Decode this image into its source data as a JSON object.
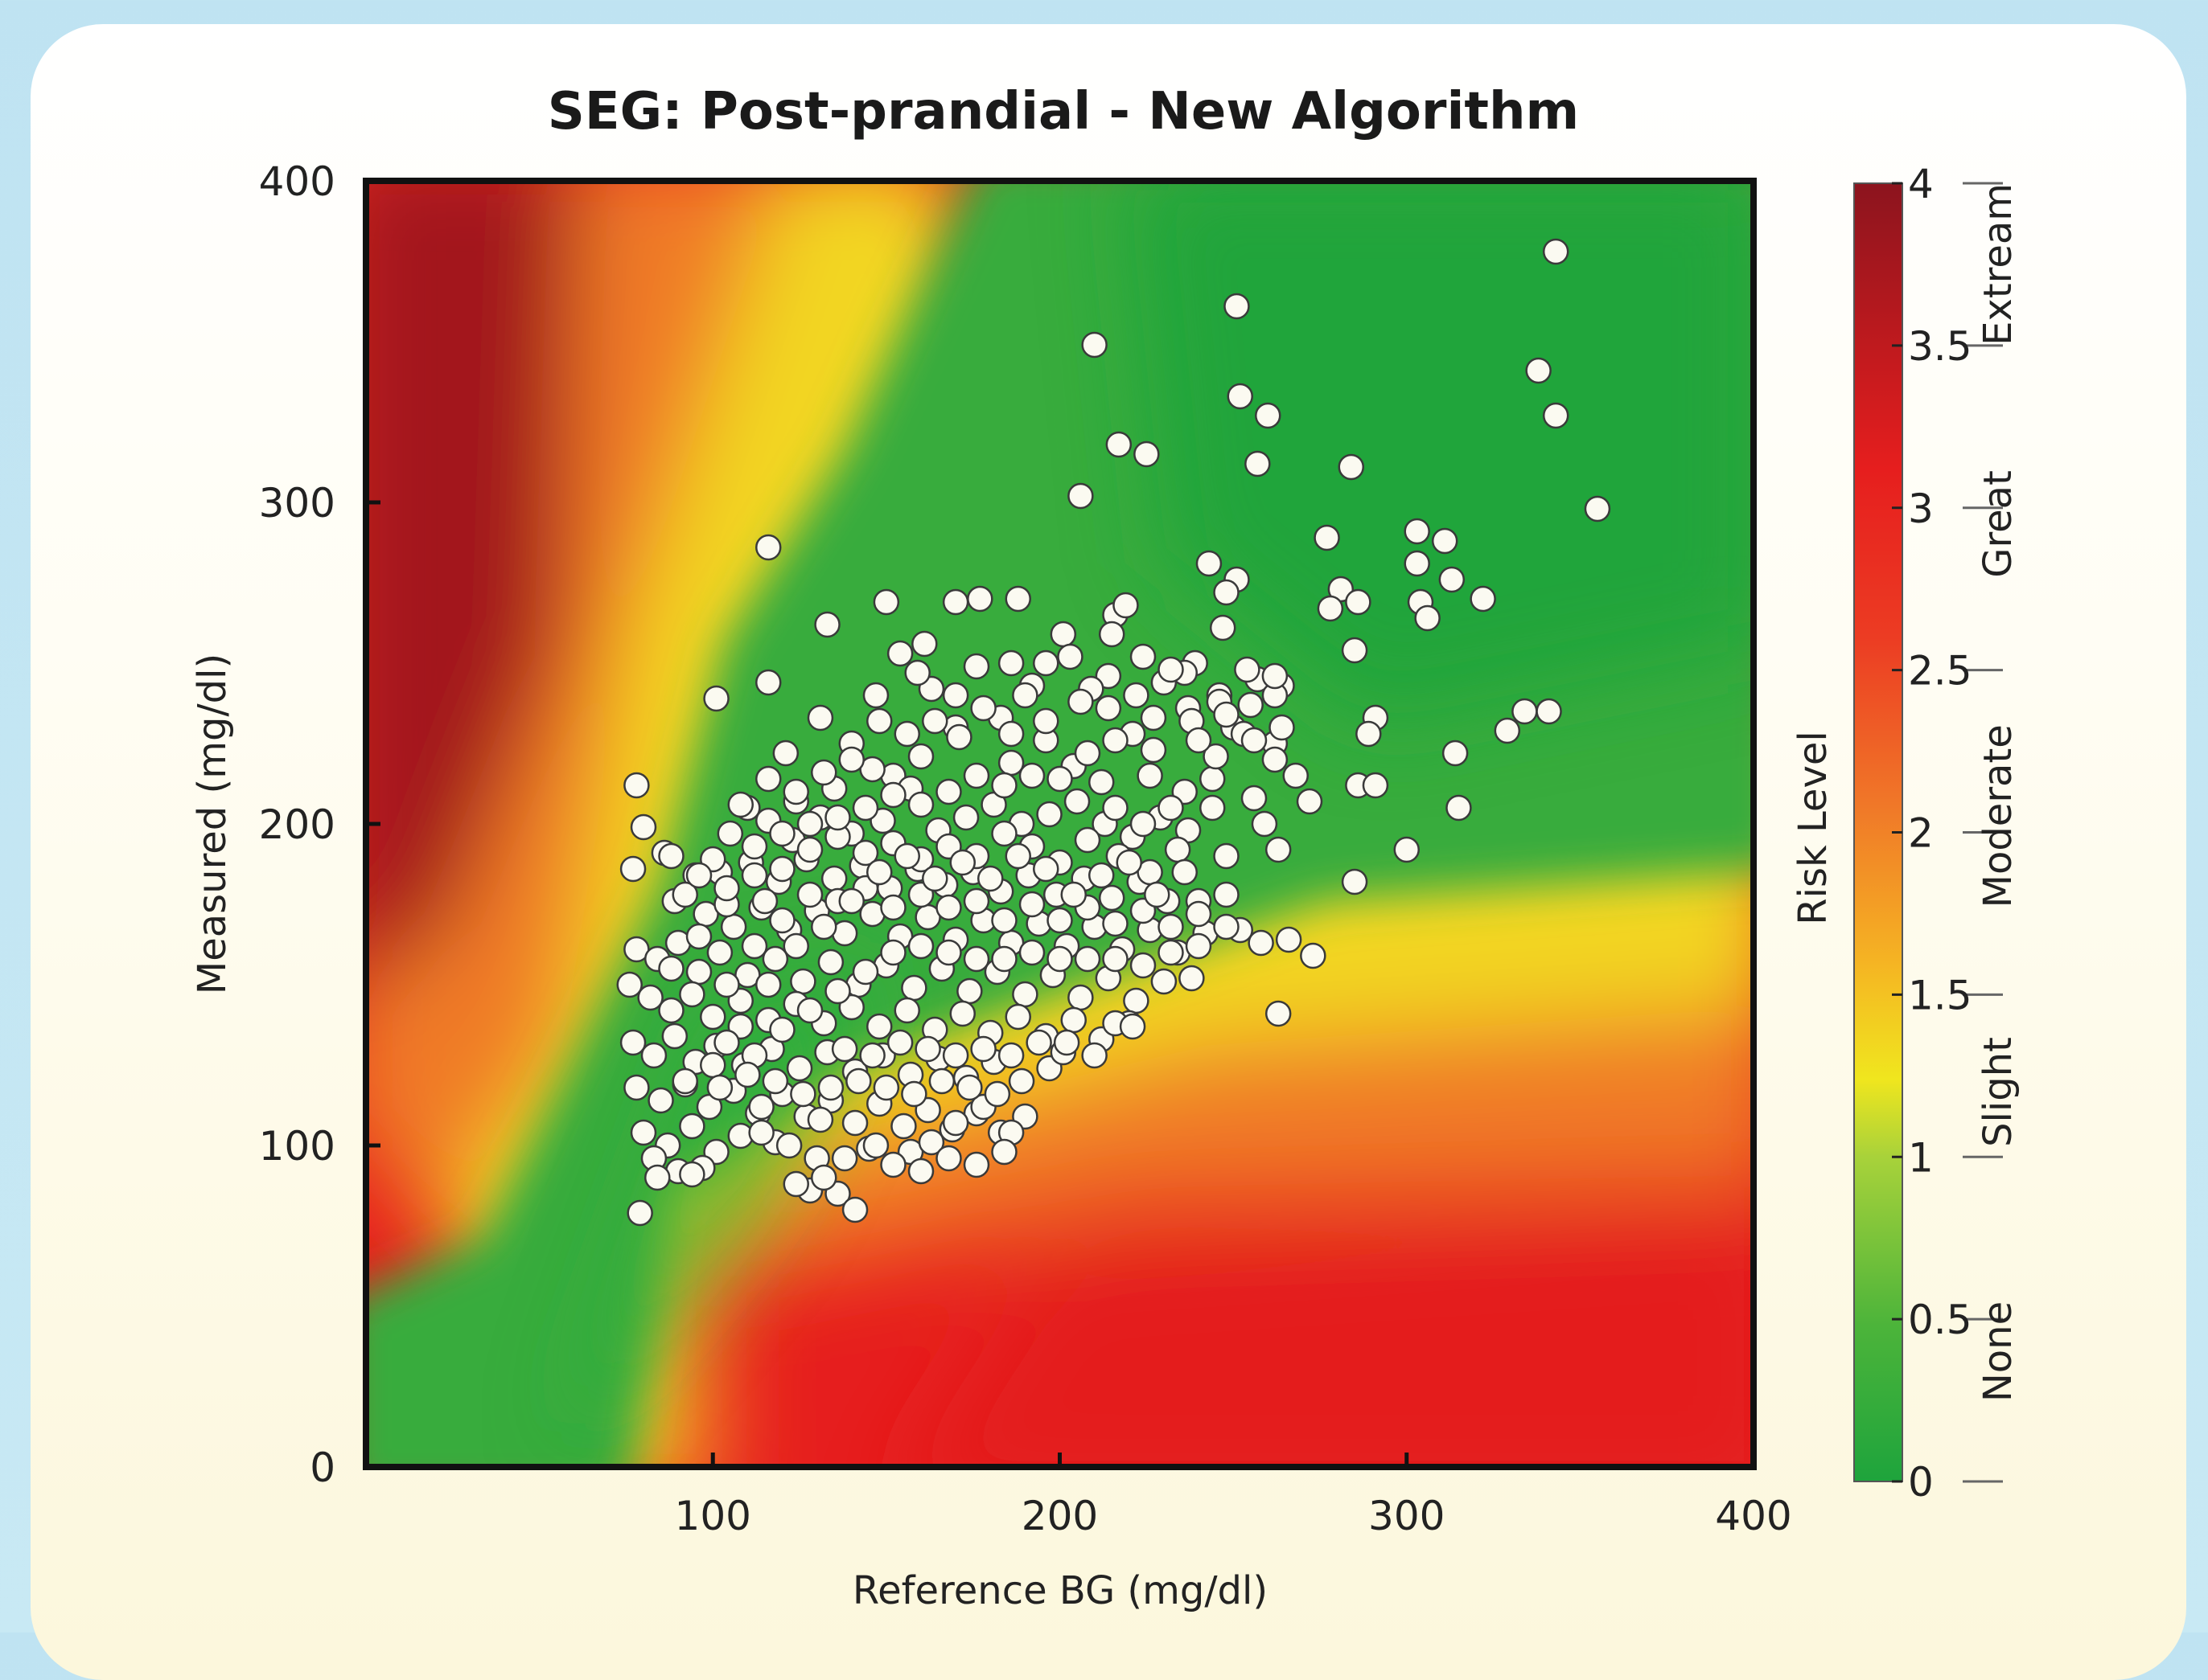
{
  "chart_data": {
    "type": "scatter",
    "title": "SEG: Post-prandial - New Algorithm",
    "xlabel": "Reference BG (mg/dl)",
    "ylabel": "Measured (mg/dl)",
    "xlim": [
      0,
      400
    ],
    "ylim": [
      0,
      400
    ],
    "x_ticks": [
      "100",
      "200",
      "300",
      "400"
    ],
    "y_ticks": [
      "0",
      "100",
      "200",
      "300",
      "400"
    ],
    "background": "risk-level heatmap (green = none, red = extreme)",
    "colorbar": {
      "label": "Risk Level",
      "range": [
        0,
        4
      ],
      "ticks": [
        "0",
        "0.5",
        "1",
        "1.5",
        "2",
        "2.5",
        "3",
        "3.5",
        "4"
      ],
      "categories": [
        "None",
        "Slight",
        "Moderate",
        "Great",
        "Extream"
      ],
      "colors": [
        "#1ea43c",
        "#8cc83c",
        "#f0e61e",
        "#f07828",
        "#e61e1e",
        "#8c141e"
      ]
    },
    "points": [
      [
        343,
        378
      ],
      [
        251,
        361
      ],
      [
        210,
        349
      ],
      [
        338,
        341
      ],
      [
        343,
        327
      ],
      [
        252,
        333
      ],
      [
        260,
        327
      ],
      [
        217,
        318
      ],
      [
        225,
        315
      ],
      [
        257,
        312
      ],
      [
        284,
        311
      ],
      [
        206,
        302
      ],
      [
        355,
        298
      ],
      [
        303,
        291
      ],
      [
        311,
        288
      ],
      [
        277,
        289
      ],
      [
        303,
        281
      ],
      [
        243,
        281
      ],
      [
        116,
        286
      ],
      [
        251,
        276
      ],
      [
        281,
        273
      ],
      [
        313,
        276
      ],
      [
        248,
        272
      ],
      [
        286,
        269
      ],
      [
        304,
        269
      ],
      [
        322,
        270
      ],
      [
        278,
        267
      ],
      [
        150,
        269
      ],
      [
        170,
        269
      ],
      [
        177,
        270
      ],
      [
        188,
        270
      ],
      [
        216,
        265
      ],
      [
        219,
        268
      ],
      [
        247,
        261
      ],
      [
        306,
        264
      ],
      [
        133,
        262
      ],
      [
        201,
        259
      ],
      [
        161,
        256
      ],
      [
        154,
        253
      ],
      [
        215,
        259
      ],
      [
        239,
        250
      ],
      [
        257,
        245
      ],
      [
        264,
        243
      ],
      [
        285,
        254
      ],
      [
        246,
        240
      ],
      [
        131,
        233
      ],
      [
        163,
        242
      ],
      [
        176,
        249
      ],
      [
        203,
        252
      ],
      [
        236,
        247
      ],
      [
        262,
        240
      ],
      [
        101,
        239
      ],
      [
        116,
        244
      ],
      [
        147,
        240
      ],
      [
        159,
        247
      ],
      [
        186,
        250
      ],
      [
        214,
        246
      ],
      [
        192,
        243
      ],
      [
        209,
        242
      ],
      [
        227,
        233
      ],
      [
        237,
        236
      ],
      [
        250,
        230
      ],
      [
        262,
        225
      ],
      [
        291,
        233
      ],
      [
        289,
        228
      ],
      [
        334,
        235
      ],
      [
        341,
        235
      ],
      [
        329,
        229
      ],
      [
        314,
        222
      ],
      [
        121,
        222
      ],
      [
        140,
        225
      ],
      [
        170,
        230
      ],
      [
        152,
        215
      ],
      [
        186,
        219
      ],
      [
        221,
        228
      ],
      [
        227,
        223
      ],
      [
        244,
        214
      ],
      [
        256,
        208
      ],
      [
        259,
        200
      ],
      [
        272,
        207
      ],
      [
        286,
        212
      ],
      [
        291,
        212
      ],
      [
        315,
        205
      ],
      [
        300,
        192
      ],
      [
        263,
        192
      ],
      [
        285,
        182
      ],
      [
        248,
        190
      ],
      [
        240,
        176
      ],
      [
        78,
        212
      ],
      [
        80,
        199
      ],
      [
        77,
        186
      ],
      [
        95,
        184
      ],
      [
        86,
        191
      ],
      [
        89,
        176
      ],
      [
        105,
        197
      ],
      [
        110,
        205
      ],
      [
        116,
        201
      ],
      [
        124,
        207
      ],
      [
        131,
        202
      ],
      [
        140,
        197
      ],
      [
        149,
        201
      ],
      [
        157,
        211
      ],
      [
        165,
        198
      ],
      [
        173,
        202
      ],
      [
        181,
        206
      ],
      [
        189,
        200
      ],
      [
        197,
        203
      ],
      [
        205,
        207
      ],
      [
        213,
        200
      ],
      [
        221,
        196
      ],
      [
        229,
        202
      ],
      [
        237,
        198
      ],
      [
        102,
        185
      ],
      [
        111,
        188
      ],
      [
        119,
        182
      ],
      [
        127,
        189
      ],
      [
        135,
        183
      ],
      [
        143,
        187
      ],
      [
        151,
        180
      ],
      [
        159,
        186
      ],
      [
        167,
        181
      ],
      [
        175,
        185
      ],
      [
        183,
        179
      ],
      [
        191,
        184
      ],
      [
        199,
        178
      ],
      [
        207,
        183
      ],
      [
        215,
        177
      ],
      [
        223,
        182
      ],
      [
        231,
        176
      ],
      [
        98,
        172
      ],
      [
        106,
        168
      ],
      [
        114,
        174
      ],
      [
        122,
        167
      ],
      [
        130,
        173
      ],
      [
        138,
        166
      ],
      [
        146,
        172
      ],
      [
        154,
        165
      ],
      [
        162,
        171
      ],
      [
        170,
        164
      ],
      [
        178,
        170
      ],
      [
        186,
        163
      ],
      [
        194,
        169
      ],
      [
        202,
        162
      ],
      [
        210,
        168
      ],
      [
        218,
        161
      ],
      [
        226,
        167
      ],
      [
        234,
        160
      ],
      [
        242,
        166
      ],
      [
        252,
        167
      ],
      [
        258,
        163
      ],
      [
        266,
        164
      ],
      [
        273,
        159
      ],
      [
        238,
        152
      ],
      [
        78,
        161
      ],
      [
        84,
        158
      ],
      [
        90,
        163
      ],
      [
        96,
        154
      ],
      [
        102,
        160
      ],
      [
        110,
        153
      ],
      [
        118,
        158
      ],
      [
        126,
        151
      ],
      [
        134,
        157
      ],
      [
        142,
        150
      ],
      [
        150,
        156
      ],
      [
        158,
        149
      ],
      [
        166,
        155
      ],
      [
        174,
        148
      ],
      [
        182,
        154
      ],
      [
        190,
        147
      ],
      [
        198,
        153
      ],
      [
        206,
        146
      ],
      [
        214,
        152
      ],
      [
        222,
        145
      ],
      [
        230,
        151
      ],
      [
        76,
        150
      ],
      [
        82,
        146
      ],
      [
        88,
        142
      ],
      [
        94,
        147
      ],
      [
        100,
        140
      ],
      [
        108,
        145
      ],
      [
        116,
        139
      ],
      [
        124,
        144
      ],
      [
        132,
        138
      ],
      [
        140,
        143
      ],
      [
        148,
        137
      ],
      [
        156,
        142
      ],
      [
        164,
        136
      ],
      [
        172,
        141
      ],
      [
        180,
        135
      ],
      [
        188,
        140
      ],
      [
        196,
        134
      ],
      [
        204,
        139
      ],
      [
        212,
        133
      ],
      [
        220,
        138
      ],
      [
        263,
        141
      ],
      [
        77,
        132
      ],
      [
        83,
        128
      ],
      [
        89,
        134
      ],
      [
        95,
        126
      ],
      [
        101,
        131
      ],
      [
        109,
        125
      ],
      [
        117,
        130
      ],
      [
        125,
        124
      ],
      [
        133,
        129
      ],
      [
        141,
        123
      ],
      [
        149,
        128
      ],
      [
        157,
        122
      ],
      [
        165,
        127
      ],
      [
        173,
        121
      ],
      [
        181,
        126
      ],
      [
        189,
        120
      ],
      [
        197,
        124
      ],
      [
        201,
        129
      ],
      [
        216,
        138
      ],
      [
        221,
        137
      ],
      [
        78,
        118
      ],
      [
        85,
        114
      ],
      [
        92,
        119
      ],
      [
        99,
        112
      ],
      [
        106,
        117
      ],
      [
        113,
        110
      ],
      [
        120,
        116
      ],
      [
        127,
        109
      ],
      [
        134,
        114
      ],
      [
        141,
        107
      ],
      [
        148,
        113
      ],
      [
        155,
        106
      ],
      [
        162,
        111
      ],
      [
        169,
        105
      ],
      [
        176,
        110
      ],
      [
        183,
        104
      ],
      [
        190,
        109
      ],
      [
        80,
        104
      ],
      [
        87,
        100
      ],
      [
        94,
        106
      ],
      [
        101,
        98
      ],
      [
        108,
        103
      ],
      [
        118,
        101
      ],
      [
        131,
        108
      ],
      [
        145,
        99
      ],
      [
        157,
        98
      ],
      [
        163,
        101
      ],
      [
        170,
        107
      ],
      [
        178,
        112
      ],
      [
        186,
        104
      ],
      [
        83,
        96
      ],
      [
        90,
        92
      ],
      [
        97,
        93
      ],
      [
        84,
        90
      ],
      [
        94,
        91
      ],
      [
        138,
        96
      ],
      [
        147,
        100
      ],
      [
        128,
        86
      ],
      [
        136,
        85
      ],
      [
        141,
        80
      ],
      [
        79,
        79
      ],
      [
        92,
        178
      ],
      [
        100,
        189
      ],
      [
        115,
        176
      ],
      [
        123,
        195
      ],
      [
        135,
        211
      ],
      [
        146,
        217
      ],
      [
        160,
        221
      ],
      [
        171,
        227
      ],
      [
        183,
        233
      ],
      [
        196,
        226
      ],
      [
        204,
        218
      ],
      [
        212,
        213
      ],
      [
        226,
        215
      ],
      [
        236,
        210
      ],
      [
        245,
        221
      ],
      [
        253,
        228
      ],
      [
        255,
        237
      ],
      [
        244,
        205
      ],
      [
        234,
        192
      ],
      [
        226,
        185
      ],
      [
        217,
        190
      ],
      [
        208,
        195
      ],
      [
        200,
        188
      ],
      [
        192,
        193
      ],
      [
        184,
        197
      ],
      [
        176,
        190
      ],
      [
        168,
        193
      ],
      [
        160,
        189
      ],
      [
        152,
        194
      ],
      [
        144,
        191
      ],
      [
        136,
        196
      ],
      [
        128,
        192
      ],
      [
        120,
        197
      ],
      [
        112,
        193
      ],
      [
        104,
        175
      ],
      [
        96,
        165
      ],
      [
        88,
        155
      ],
      [
        104,
        150
      ],
      [
        112,
        162
      ],
      [
        120,
        170
      ],
      [
        128,
        178
      ],
      [
        136,
        176
      ],
      [
        144,
        180
      ],
      [
        152,
        174
      ],
      [
        160,
        178
      ],
      [
        168,
        174
      ],
      [
        176,
        176
      ],
      [
        184,
        170
      ],
      [
        192,
        175
      ],
      [
        200,
        170
      ],
      [
        208,
        174
      ],
      [
        216,
        169
      ],
      [
        224,
        173
      ],
      [
        232,
        168
      ],
      [
        240,
        172
      ],
      [
        248,
        178
      ],
      [
        236,
        185
      ],
      [
        228,
        178
      ],
      [
        220,
        188
      ],
      [
        212,
        184
      ],
      [
        204,
        178
      ],
      [
        196,
        186
      ],
      [
        188,
        190
      ],
      [
        180,
        183
      ],
      [
        172,
        188
      ],
      [
        164,
        183
      ],
      [
        156,
        190
      ],
      [
        148,
        185
      ],
      [
        140,
        176
      ],
      [
        132,
        168
      ],
      [
        124,
        162
      ],
      [
        116,
        150
      ],
      [
        108,
        137
      ],
      [
        100,
        125
      ],
      [
        92,
        120
      ],
      [
        104,
        132
      ],
      [
        112,
        128
      ],
      [
        120,
        136
      ],
      [
        128,
        142
      ],
      [
        136,
        148
      ],
      [
        144,
        154
      ],
      [
        152,
        160
      ],
      [
        160,
        162
      ],
      [
        168,
        160
      ],
      [
        176,
        158
      ],
      [
        184,
        158
      ],
      [
        192,
        160
      ],
      [
        200,
        158
      ],
      [
        208,
        158
      ],
      [
        216,
        158
      ],
      [
        224,
        156
      ],
      [
        232,
        160
      ],
      [
        240,
        162
      ],
      [
        248,
        168
      ],
      [
        138,
        130
      ],
      [
        146,
        128
      ],
      [
        154,
        132
      ],
      [
        162,
        130
      ],
      [
        170,
        128
      ],
      [
        178,
        130
      ],
      [
        186,
        128
      ],
      [
        194,
        132
      ],
      [
        202,
        132
      ],
      [
        210,
        128
      ],
      [
        150,
        118
      ],
      [
        158,
        116
      ],
      [
        166,
        120
      ],
      [
        174,
        118
      ],
      [
        182,
        116
      ],
      [
        142,
        120
      ],
      [
        134,
        118
      ],
      [
        126,
        116
      ],
      [
        118,
        120
      ],
      [
        110,
        122
      ],
      [
        102,
        118
      ],
      [
        114,
        104
      ],
      [
        122,
        100
      ],
      [
        130,
        96
      ],
      [
        152,
        94
      ],
      [
        160,
        92
      ],
      [
        168,
        96
      ],
      [
        176,
        94
      ],
      [
        184,
        98
      ],
      [
        124,
        88
      ],
      [
        132,
        90
      ],
      [
        114,
        112
      ],
      [
        196,
        250
      ],
      [
        190,
        240
      ],
      [
        206,
        238
      ],
      [
        214,
        236
      ],
      [
        222,
        240
      ],
      [
        230,
        244
      ],
      [
        238,
        232
      ],
      [
        246,
        238
      ],
      [
        254,
        248
      ],
      [
        262,
        246
      ],
      [
        224,
        252
      ],
      [
        232,
        248
      ],
      [
        178,
        236
      ],
      [
        170,
        240
      ],
      [
        186,
        228
      ],
      [
        196,
        232
      ],
      [
        164,
        232
      ],
      [
        156,
        228
      ],
      [
        148,
        232
      ],
      [
        140,
        220
      ],
      [
        132,
        216
      ],
      [
        124,
        210
      ],
      [
        116,
        214
      ],
      [
        108,
        206
      ],
      [
        200,
        214
      ],
      [
        208,
        222
      ],
      [
        216,
        226
      ],
      [
        240,
        226
      ],
      [
        248,
        234
      ],
      [
        256,
        226
      ],
      [
        264,
        230
      ],
      [
        268,
        215
      ],
      [
        262,
        220
      ],
      [
        232,
        205
      ],
      [
        224,
        200
      ],
      [
        216,
        205
      ],
      [
        192,
        215
      ],
      [
        184,
        212
      ],
      [
        176,
        215
      ],
      [
        168,
        210
      ],
      [
        160,
        206
      ],
      [
        152,
        209
      ],
      [
        144,
        205
      ],
      [
        136,
        202
      ],
      [
        128,
        200
      ],
      [
        120,
        186
      ],
      [
        112,
        184
      ],
      [
        104,
        180
      ],
      [
        96,
        184
      ],
      [
        88,
        190
      ]
    ]
  }
}
